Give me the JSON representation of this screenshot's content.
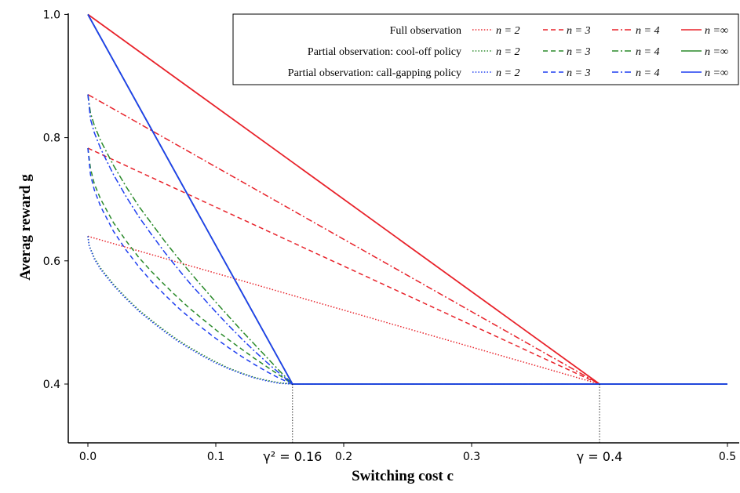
{
  "chart_data": {
    "type": "line",
    "xlabel": "Switching cost c",
    "ylabel": "Averag reward g",
    "xlim": [
      -0.015,
      0.5
    ],
    "ylim": [
      0.3,
      1.0
    ],
    "xticks": [
      0.0,
      0.1,
      0.2,
      0.3,
      0.5
    ],
    "xtick_labels": [
      "0.0",
      "0.1",
      "0.2",
      "0.3",
      "0.5"
    ],
    "yticks": [
      0.4,
      0.6,
      0.8,
      1.0
    ],
    "ytick_labels": [
      "0.4",
      "0.6",
      "0.8",
      "1.0"
    ],
    "annotations": [
      {
        "label": "γ² = 0.16",
        "x": 0.16
      },
      {
        "label": "γ = 0.4",
        "x": 0.4
      }
    ],
    "legend": {
      "position": "top-right",
      "groups": [
        {
          "title": "Full observation",
          "color": "#e8222a"
        },
        {
          "title": "Partial observation: cool-off policy",
          "color": "#2a8a2a"
        },
        {
          "title": "Partial observation: call-gapping policy",
          "color": "#1f3ff0"
        }
      ],
      "n_labels": [
        "n = 2",
        "n = 3",
        "n = 4",
        "n =∞"
      ]
    },
    "series": [
      {
        "group": 0,
        "n": "2",
        "dash": "dotted",
        "points": [
          [
            0.0,
            0.64
          ],
          [
            0.4,
            0.4
          ],
          [
            0.5,
            0.4
          ]
        ]
      },
      {
        "group": 0,
        "n": "3",
        "dash": "dashed",
        "points": [
          [
            0.0,
            0.783
          ],
          [
            0.4,
            0.4
          ],
          [
            0.5,
            0.4
          ]
        ]
      },
      {
        "group": 0,
        "n": "4",
        "dash": "dashdot",
        "points": [
          [
            0.0,
            0.87
          ],
          [
            0.4,
            0.4
          ],
          [
            0.5,
            0.4
          ]
        ]
      },
      {
        "group": 0,
        "n": "∞",
        "dash": "solid",
        "points": [
          [
            0.0,
            1.0
          ],
          [
            0.4,
            0.4
          ],
          [
            0.5,
            0.4
          ]
        ]
      },
      {
        "group": 1,
        "n": "2",
        "dash": "dotted",
        "points": [
          [
            0.0,
            0.64
          ],
          [
            0.001,
            0.625
          ],
          [
            0.005,
            0.605
          ],
          [
            0.01,
            0.588
          ],
          [
            0.02,
            0.562
          ],
          [
            0.03,
            0.54
          ],
          [
            0.04,
            0.52
          ],
          [
            0.05,
            0.503
          ],
          [
            0.06,
            0.487
          ],
          [
            0.07,
            0.472
          ],
          [
            0.08,
            0.459
          ],
          [
            0.09,
            0.447
          ],
          [
            0.1,
            0.436
          ],
          [
            0.11,
            0.426
          ],
          [
            0.12,
            0.418
          ],
          [
            0.13,
            0.411
          ],
          [
            0.14,
            0.406
          ],
          [
            0.15,
            0.402
          ],
          [
            0.16,
            0.4
          ],
          [
            0.5,
            0.4
          ]
        ]
      },
      {
        "group": 1,
        "n": "3",
        "dash": "dashed",
        "points": [
          [
            0.0,
            0.783
          ],
          [
            0.002,
            0.75
          ],
          [
            0.005,
            0.725
          ],
          [
            0.01,
            0.7
          ],
          [
            0.02,
            0.662
          ],
          [
            0.03,
            0.632
          ],
          [
            0.04,
            0.605
          ],
          [
            0.05,
            0.582
          ],
          [
            0.06,
            0.561
          ],
          [
            0.07,
            0.541
          ],
          [
            0.08,
            0.522
          ],
          [
            0.09,
            0.505
          ],
          [
            0.1,
            0.488
          ],
          [
            0.11,
            0.472
          ],
          [
            0.12,
            0.457
          ],
          [
            0.13,
            0.442
          ],
          [
            0.14,
            0.428
          ],
          [
            0.15,
            0.414
          ],
          [
            0.16,
            0.4
          ],
          [
            0.5,
            0.4
          ]
        ]
      },
      {
        "group": 1,
        "n": "4",
        "dash": "dashdot",
        "points": [
          [
            0.0,
            0.87
          ],
          [
            0.002,
            0.84
          ],
          [
            0.005,
            0.82
          ],
          [
            0.01,
            0.795
          ],
          [
            0.02,
            0.755
          ],
          [
            0.03,
            0.72
          ],
          [
            0.04,
            0.688
          ],
          [
            0.05,
            0.66
          ],
          [
            0.06,
            0.632
          ],
          [
            0.07,
            0.606
          ],
          [
            0.08,
            0.581
          ],
          [
            0.09,
            0.557
          ],
          [
            0.1,
            0.533
          ],
          [
            0.11,
            0.51
          ],
          [
            0.12,
            0.487
          ],
          [
            0.13,
            0.465
          ],
          [
            0.14,
            0.443
          ],
          [
            0.15,
            0.421
          ],
          [
            0.16,
            0.4
          ],
          [
            0.5,
            0.4
          ]
        ]
      },
      {
        "group": 1,
        "n": "∞",
        "dash": "solid",
        "points": [
          [
            0.0,
            1.0
          ],
          [
            0.16,
            0.4
          ],
          [
            0.5,
            0.4
          ]
        ]
      },
      {
        "group": 2,
        "n": "2",
        "dash": "dotted",
        "points": [
          [
            0.0,
            0.64
          ],
          [
            0.001,
            0.624
          ],
          [
            0.005,
            0.603
          ],
          [
            0.01,
            0.586
          ],
          [
            0.02,
            0.56
          ],
          [
            0.03,
            0.538
          ],
          [
            0.04,
            0.518
          ],
          [
            0.05,
            0.501
          ],
          [
            0.06,
            0.485
          ],
          [
            0.07,
            0.47
          ],
          [
            0.08,
            0.457
          ],
          [
            0.09,
            0.445
          ],
          [
            0.1,
            0.434
          ],
          [
            0.11,
            0.425
          ],
          [
            0.12,
            0.417
          ],
          [
            0.13,
            0.41
          ],
          [
            0.14,
            0.405
          ],
          [
            0.15,
            0.401
          ],
          [
            0.16,
            0.4
          ],
          [
            0.5,
            0.4
          ]
        ]
      },
      {
        "group": 2,
        "n": "3",
        "dash": "dashed",
        "points": [
          [
            0.0,
            0.783
          ],
          [
            0.002,
            0.74
          ],
          [
            0.005,
            0.715
          ],
          [
            0.01,
            0.688
          ],
          [
            0.02,
            0.648
          ],
          [
            0.03,
            0.617
          ],
          [
            0.04,
            0.59
          ],
          [
            0.05,
            0.566
          ],
          [
            0.06,
            0.545
          ],
          [
            0.07,
            0.525
          ],
          [
            0.08,
            0.507
          ],
          [
            0.09,
            0.49
          ],
          [
            0.1,
            0.474
          ],
          [
            0.11,
            0.459
          ],
          [
            0.12,
            0.445
          ],
          [
            0.13,
            0.432
          ],
          [
            0.14,
            0.42
          ],
          [
            0.15,
            0.409
          ],
          [
            0.16,
            0.4
          ],
          [
            0.5,
            0.4
          ]
        ]
      },
      {
        "group": 2,
        "n": "4",
        "dash": "dashdot",
        "points": [
          [
            0.0,
            0.87
          ],
          [
            0.002,
            0.83
          ],
          [
            0.005,
            0.808
          ],
          [
            0.01,
            0.782
          ],
          [
            0.02,
            0.74
          ],
          [
            0.03,
            0.704
          ],
          [
            0.04,
            0.671
          ],
          [
            0.05,
            0.642
          ],
          [
            0.06,
            0.614
          ],
          [
            0.07,
            0.588
          ],
          [
            0.08,
            0.563
          ],
          [
            0.09,
            0.54
          ],
          [
            0.1,
            0.517
          ],
          [
            0.11,
            0.495
          ],
          [
            0.12,
            0.474
          ],
          [
            0.13,
            0.454
          ],
          [
            0.14,
            0.435
          ],
          [
            0.15,
            0.417
          ],
          [
            0.16,
            0.4
          ],
          [
            0.5,
            0.4
          ]
        ]
      },
      {
        "group": 2,
        "n": "∞",
        "dash": "solid",
        "points": [
          [
            0.0,
            1.0
          ],
          [
            0.16,
            0.4
          ],
          [
            0.5,
            0.4
          ]
        ]
      }
    ]
  }
}
